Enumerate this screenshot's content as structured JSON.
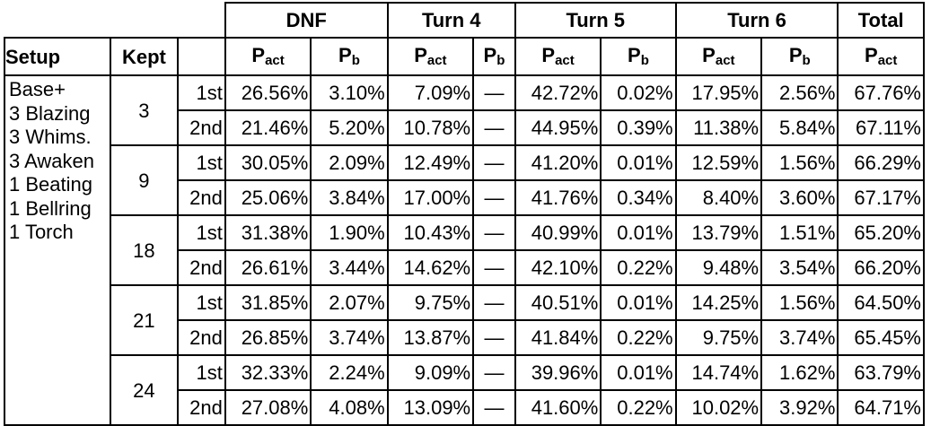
{
  "header_groups": [
    "DNF",
    "Turn 4",
    "Turn 5",
    "Turn 6",
    "Total"
  ],
  "row_headers": {
    "setup": "Setup",
    "kept": "Kept"
  },
  "sub_headers": [
    {
      "main": "P",
      "sub": "act"
    },
    {
      "main": "P",
      "sub": "b"
    },
    {
      "main": "P",
      "sub": "act"
    },
    {
      "main": "P",
      "sub": "b"
    },
    {
      "main": "P",
      "sub": "act"
    },
    {
      "main": "P",
      "sub": "b"
    },
    {
      "main": "P",
      "sub": "act"
    },
    {
      "main": "P",
      "sub": "b"
    },
    {
      "main": "P",
      "sub": "act"
    }
  ],
  "setup_lines": [
    "Base+",
    "3 Blazing",
    "3 Whims.",
    "3 Awaken",
    "1 Beating",
    "1 Bellring",
    "1 Torch"
  ],
  "groups": [
    {
      "kept": "3",
      "rows": [
        {
          "ord": "1st",
          "vals": [
            "26.56%",
            "3.10%",
            "7.09%",
            "—",
            "42.72%",
            "0.02%",
            "17.95%",
            "2.56%",
            "67.76%"
          ]
        },
        {
          "ord": "2nd",
          "vals": [
            "21.46%",
            "5.20%",
            "10.78%",
            "—",
            "44.95%",
            "0.39%",
            "11.38%",
            "5.84%",
            "67.11%"
          ]
        }
      ]
    },
    {
      "kept": "9",
      "rows": [
        {
          "ord": "1st",
          "vals": [
            "30.05%",
            "2.09%",
            "12.49%",
            "—",
            "41.20%",
            "0.01%",
            "12.59%",
            "1.56%",
            "66.29%"
          ]
        },
        {
          "ord": "2nd",
          "vals": [
            "25.06%",
            "3.84%",
            "17.00%",
            "—",
            "41.76%",
            "0.34%",
            "8.40%",
            "3.60%",
            "67.17%"
          ]
        }
      ]
    },
    {
      "kept": "18",
      "rows": [
        {
          "ord": "1st",
          "vals": [
            "31.38%",
            "1.90%",
            "10.43%",
            "—",
            "40.99%",
            "0.01%",
            "13.79%",
            "1.51%",
            "65.20%"
          ]
        },
        {
          "ord": "2nd",
          "vals": [
            "26.61%",
            "3.44%",
            "14.62%",
            "—",
            "42.10%",
            "0.22%",
            "9.48%",
            "3.54%",
            "66.20%"
          ]
        }
      ]
    },
    {
      "kept": "21",
      "rows": [
        {
          "ord": "1st",
          "vals": [
            "31.85%",
            "2.07%",
            "9.75%",
            "—",
            "40.51%",
            "0.01%",
            "14.25%",
            "1.56%",
            "64.50%"
          ]
        },
        {
          "ord": "2nd",
          "vals": [
            "26.85%",
            "3.74%",
            "13.87%",
            "—",
            "41.84%",
            "0.22%",
            "9.75%",
            "3.74%",
            "65.45%"
          ]
        }
      ]
    },
    {
      "kept": "24",
      "rows": [
        {
          "ord": "1st",
          "vals": [
            "32.33%",
            "2.24%",
            "9.09%",
            "—",
            "39.96%",
            "0.01%",
            "14.74%",
            "1.62%",
            "63.79%"
          ]
        },
        {
          "ord": "2nd",
          "vals": [
            "27.08%",
            "4.08%",
            "13.09%",
            "—",
            "41.60%",
            "0.22%",
            "10.02%",
            "3.92%",
            "64.71%"
          ]
        }
      ]
    }
  ]
}
